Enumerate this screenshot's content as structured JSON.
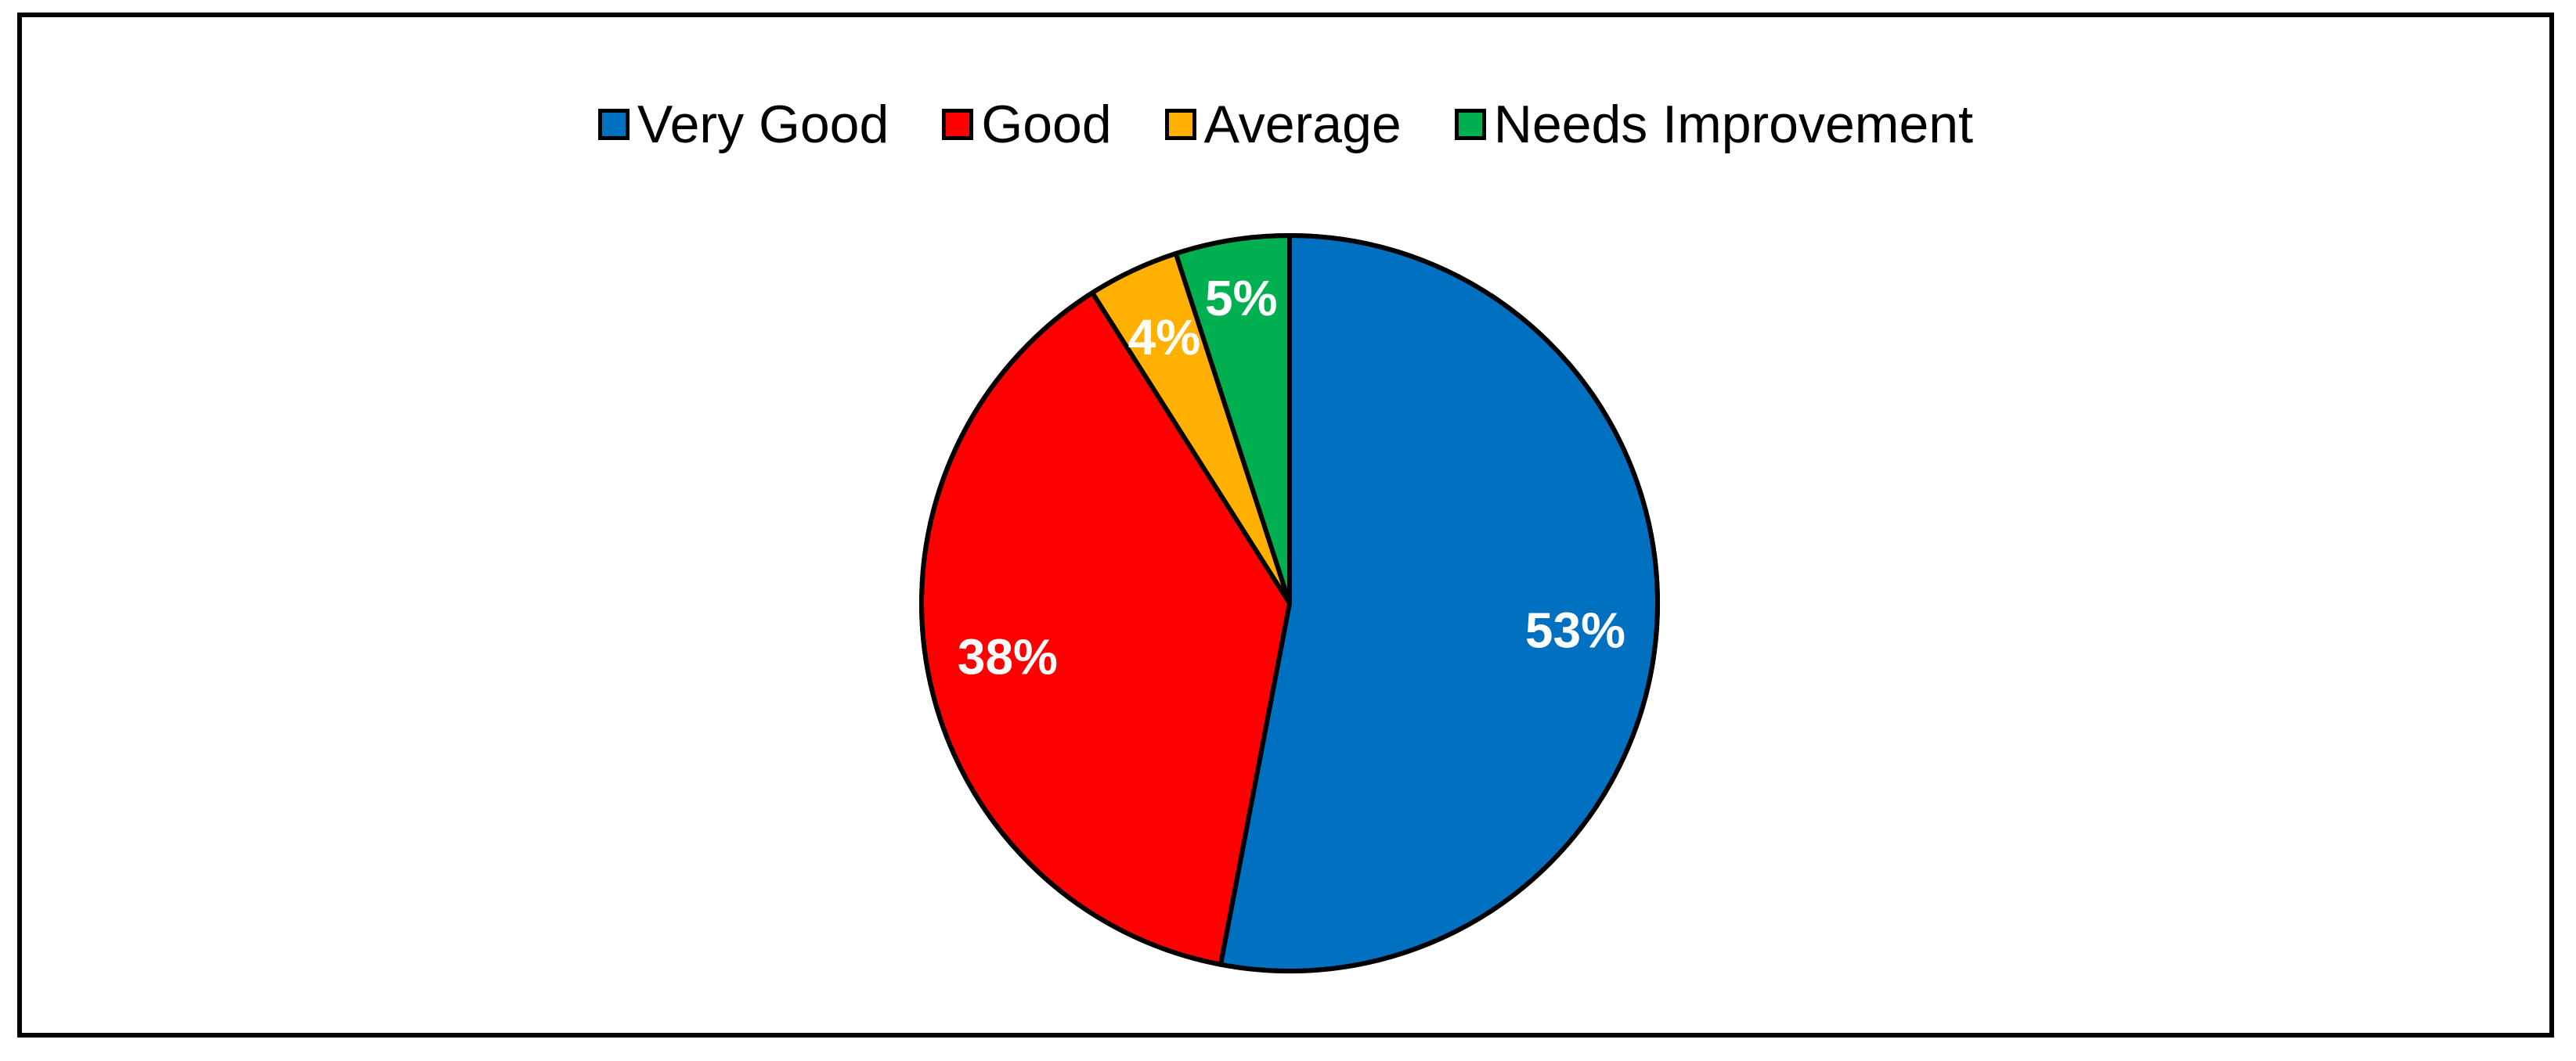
{
  "chart_data": {
    "type": "pie",
    "title": "",
    "categories": [
      "Very Good",
      "Good",
      "Average",
      "Needs Improvement"
    ],
    "values": [
      53,
      38,
      4,
      5
    ],
    "labels": [
      "53%",
      "38%",
      "4%",
      "5%"
    ],
    "colors": [
      "#0070C0",
      "#FF0000",
      "#FFB000",
      "#00B050"
    ],
    "legend_position": "top",
    "start_angle": "12 o'clock",
    "direction": "clockwise"
  }
}
